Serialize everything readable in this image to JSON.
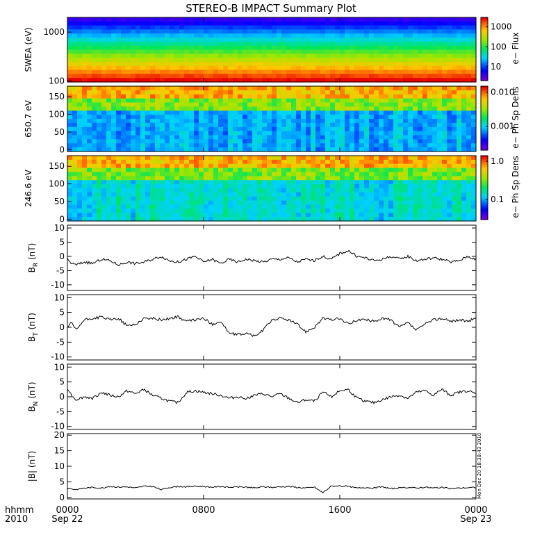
{
  "title": "STEREO-B IMPACT Summary Plot",
  "stamp": "Mon Dec 20 18:38:43 2010",
  "x_axis": {
    "corner_labels": [
      "hhmm",
      "2010"
    ],
    "ticks": [
      {
        "hhmm": "0000",
        "date": "Sep 22",
        "hour": 0
      },
      {
        "hhmm": "0800",
        "date": "",
        "hour": 8
      },
      {
        "hhmm": "1600",
        "date": "",
        "hour": 16
      },
      {
        "hhmm": "0000",
        "date": "Sep 23",
        "hour": 24
      }
    ],
    "range_hours": [
      0,
      24
    ]
  },
  "chart_data": [
    {
      "type": "heatmap",
      "ylabel": "SWEA (eV)",
      "ytick_labels": [
        "1000",
        "100"
      ],
      "ylog": true,
      "ylim": [
        95,
        2000
      ],
      "colorbar": {
        "label": "e− Flux",
        "ticks": [
          "1000",
          "100",
          "10"
        ],
        "log": true,
        "range": [
          2,
          3000
        ]
      },
      "description_of_values": "flux high (red) below ~300 eV, decreasing to low (blue) above ~1500 eV, nearly constant in time"
    },
    {
      "type": "heatmap",
      "ylabel": "650.7 eV",
      "ytick_labels": [
        "150",
        "100",
        "50",
        "0"
      ],
      "ylim": [
        -5,
        180
      ],
      "colorbar": {
        "label": "e− Ph Sp Dens",
        "ticks": [
          "0.010",
          "0.001"
        ],
        "log": true,
        "range": [
          0.0002,
          0.015
        ]
      },
      "description_of_values": "pitch-angle distribution, strong strahl near 180 deg"
    },
    {
      "type": "heatmap",
      "ylabel": "246.6 eV",
      "ytick_labels": [
        "150",
        "100",
        "50",
        "0"
      ],
      "ylim": [
        -5,
        180
      ],
      "colorbar": {
        "label": "e− Ph Sp Dens",
        "ticks": [
          "1.0",
          "0.1"
        ],
        "log": true,
        "range": [
          0.03,
          1.4
        ]
      },
      "description_of_values": "pitch-angle distribution, strong strahl near 180 deg"
    },
    {
      "type": "line",
      "ylabel": "B_R (nT)",
      "ylim": [
        -12,
        11
      ],
      "yticks": [
        10,
        5,
        0,
        -5,
        -10
      ],
      "x": [
        0,
        0.25,
        0.5,
        1,
        1.5,
        2,
        2.5,
        3,
        3.5,
        4,
        4.5,
        5,
        5.5,
        6,
        6.5,
        7,
        7.5,
        8,
        8.5,
        9,
        9.5,
        10,
        10.5,
        11,
        11.5,
        12,
        12.5,
        13,
        13.5,
        14,
        14.5,
        15,
        15.5,
        16,
        16.5,
        17,
        17.5,
        18,
        18.5,
        19,
        19.5,
        20,
        20.5,
        21,
        21.5,
        22,
        22.5,
        23,
        23.5,
        24
      ],
      "y": [
        -1,
        -2.5,
        -3,
        -2,
        -2.5,
        -1,
        -1.5,
        -3,
        -2,
        -2.5,
        -2,
        -1,
        0,
        -1.5,
        -2,
        -1,
        0,
        -2,
        -1,
        -2.5,
        -1,
        -2,
        -1,
        -1.5,
        -2,
        -1,
        -1,
        -0.5,
        -2,
        -1,
        -1.5,
        0,
        -1,
        1,
        2,
        0,
        -0.5,
        -1.5,
        -1,
        0,
        -1,
        0,
        -1.5,
        -1,
        -0.5,
        -1,
        -2,
        -1.5,
        0,
        -1
      ]
    },
    {
      "type": "line",
      "ylabel": "B_T (nT)",
      "ylim": [
        -11,
        11
      ],
      "yticks": [
        10,
        5,
        0,
        -5,
        -10
      ],
      "x": [
        0,
        0.25,
        0.5,
        1,
        1.5,
        2,
        2.5,
        3,
        3.5,
        4,
        4.5,
        5,
        5.5,
        6,
        6.5,
        7,
        7.5,
        8,
        8.5,
        9,
        9.5,
        10,
        10.5,
        11,
        11.5,
        12,
        12.5,
        13,
        13.5,
        14,
        14.5,
        15,
        15.5,
        16,
        16.5,
        17,
        17.5,
        18,
        18.5,
        19,
        19.5,
        20,
        20.5,
        21,
        21.5,
        22,
        22.5,
        23,
        23.5,
        24
      ],
      "y": [
        0,
        1.5,
        -1,
        2.5,
        3,
        3.5,
        2.5,
        3,
        0.5,
        1,
        3,
        3,
        2.5,
        3,
        3.5,
        2,
        2.5,
        3,
        1,
        2,
        -2,
        -2.5,
        -2,
        -3,
        -1,
        2.5,
        3,
        2.5,
        1,
        -1.5,
        0,
        3,
        2.5,
        3,
        1,
        2.5,
        2.5,
        2,
        3,
        2.5,
        0,
        1.5,
        -1,
        1,
        2.5,
        3,
        2,
        2.5,
        2,
        3
      ]
    },
    {
      "type": "line",
      "ylabel": "B_N (nT)",
      "ylim": [
        -11,
        11
      ],
      "yticks": [
        10,
        5,
        0,
        -5,
        -10
      ],
      "x": [
        0,
        0.25,
        0.5,
        1,
        1.5,
        2,
        2.5,
        3,
        3.5,
        4,
        4.5,
        5,
        5.5,
        6,
        6.5,
        7,
        7.5,
        8,
        8.5,
        9,
        9.5,
        10,
        10.5,
        11,
        11.5,
        12,
        12.5,
        13,
        13.5,
        14,
        14.5,
        15,
        15.5,
        16,
        16.5,
        17,
        17.5,
        18,
        18.5,
        19,
        19.5,
        20,
        20.5,
        21,
        21.5,
        22,
        22.5,
        23,
        23.5,
        24
      ],
      "y": [
        3,
        0.5,
        -1,
        0,
        -0.5,
        1.5,
        0.5,
        0,
        2,
        1,
        2.5,
        0.5,
        -0.5,
        -1.5,
        -2,
        1.5,
        2,
        1.5,
        1,
        0.5,
        -0.5,
        0,
        -0.5,
        0.5,
        1,
        0,
        1,
        -0.5,
        -2,
        -1,
        -1.5,
        1.5,
        0,
        2,
        2.5,
        -0.5,
        -1.5,
        -2,
        -1,
        0,
        0.5,
        -0.5,
        1.5,
        2,
        0.5,
        2.5,
        0.5,
        1.5,
        2,
        1
      ]
    },
    {
      "type": "line",
      "ylabel": "|B| (nT)",
      "ylim": [
        -0.5,
        20.5
      ],
      "yticks": [
        20,
        15,
        10,
        5,
        0
      ],
      "x": [
        0,
        0.5,
        1,
        1.5,
        2,
        2.5,
        3,
        3.5,
        4,
        4.5,
        5,
        5.5,
        6,
        6.5,
        7,
        7.5,
        8,
        8.5,
        9,
        9.5,
        10,
        10.5,
        11,
        11.5,
        12,
        12.5,
        13,
        13.5,
        14,
        14.5,
        15,
        15.5,
        16,
        16.5,
        17,
        17.5,
        18,
        18.5,
        19,
        19.5,
        20,
        20.5,
        21,
        21.5,
        22,
        22.5,
        23,
        23.5,
        24
      ],
      "y": [
        3,
        2.5,
        3,
        3.2,
        3,
        3.5,
        3.3,
        3.4,
        3,
        3.6,
        3.5,
        2.5,
        3.2,
        3.5,
        3.4,
        3.6,
        3.5,
        3.3,
        3.5,
        3.2,
        3.4,
        3.3,
        3,
        3.4,
        3.2,
        3.4,
        3.5,
        3.2,
        3.0,
        3.3,
        1.5,
        3.6,
        3.7,
        3.5,
        3.0,
        3.2,
        3.0,
        3.4,
        2.8,
        3.0,
        3.2,
        3.0,
        3.3,
        3.0,
        3.2,
        2.8,
        3.0,
        3.1,
        3.2
      ]
    }
  ]
}
